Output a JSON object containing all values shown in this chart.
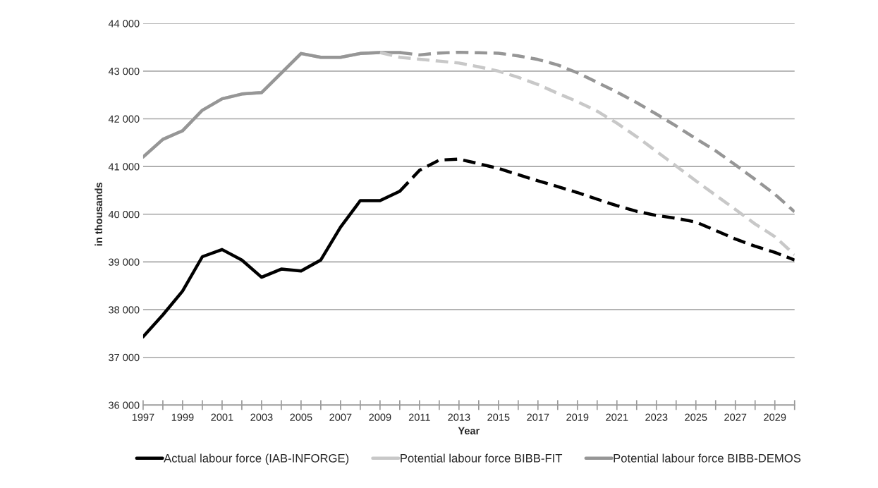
{
  "chart_data": {
    "type": "line",
    "xlabel": "Year",
    "ylabel": "in thousands",
    "xlim": [
      1997,
      2030
    ],
    "ylim": [
      36000,
      44000
    ],
    "xticks": [
      1997,
      {
        "value": 1998,
        "label": null
      },
      1999,
      {
        "value": 2000,
        "label": null
      },
      2001,
      {
        "value": 2002,
        "label": null
      },
      2003,
      {
        "value": 2004,
        "label": null
      },
      2005,
      {
        "value": 2006,
        "label": null
      },
      2007,
      {
        "value": 2008,
        "label": null
      },
      2009,
      {
        "value": 2010,
        "label": null
      },
      2011,
      {
        "value": 2012,
        "label": null
      },
      2013,
      {
        "value": 2014,
        "label": null
      },
      2015,
      {
        "value": 2016,
        "label": null
      },
      2017,
      {
        "value": 2018,
        "label": null
      },
      2019,
      {
        "value": 2020,
        "label": null
      },
      2021,
      {
        "value": 2022,
        "label": null
      },
      2023,
      {
        "value": 2024,
        "label": null
      },
      2025,
      {
        "value": 2026,
        "label": null
      },
      2027,
      {
        "value": 2028,
        "label": null
      },
      2029,
      {
        "value": 2030,
        "label": null
      }
    ],
    "yticks": [
      {
        "value": 36000,
        "label": "36 000"
      },
      {
        "value": 37000,
        "label": "37 000"
      },
      {
        "value": 38000,
        "label": "38 000"
      },
      {
        "value": 39000,
        "label": "39 000"
      },
      {
        "value": 40000,
        "label": "40 000"
      },
      {
        "value": 41000,
        "label": "41 000"
      },
      {
        "value": 42000,
        "label": "42 000"
      },
      {
        "value": 43000,
        "label": "43 000"
      },
      {
        "value": 44000,
        "label": "44 000"
      }
    ],
    "grid": "y",
    "legend": "bottom",
    "marker": "none",
    "series": [
      {
        "name": "Actual labour force (IAB-INFORGE)",
        "color": "#000000",
        "line_style": "solid",
        "x": [
          1997,
          1998,
          1999,
          2000,
          2001,
          2002,
          2003,
          2004,
          2005,
          2006,
          2007,
          2008,
          2009,
          2010
        ],
        "values": [
          37430,
          37890,
          38390,
          39110,
          39260,
          39040,
          38680,
          38850,
          38810,
          39040,
          39730,
          40285,
          40285,
          40480
        ]
      },
      {
        "name": "Potential labour force BIBB-FIT",
        "color": "#c8c8c8",
        "line_style": "solid",
        "x": [
          1997,
          1998,
          1999,
          2000,
          2001,
          2002,
          2003,
          2004,
          2005,
          2006,
          2007,
          2008,
          2009
        ],
        "values": [
          41200,
          41570,
          41750,
          42180,
          42420,
          42520,
          42550,
          42960,
          43370,
          43290,
          43290,
          43370,
          43390
        ]
      },
      {
        "name": "Potential labour force BIBB-DEMOS",
        "color": "#969696",
        "line_style": "solid",
        "x": [
          1997,
          1998,
          1999,
          2000,
          2001,
          2002,
          2003,
          2004,
          2005,
          2006,
          2007,
          2008,
          2009,
          2010
        ],
        "values": [
          41200,
          41570,
          41750,
          42180,
          42420,
          42520,
          42550,
          42960,
          43370,
          43290,
          43290,
          43370,
          43390,
          43390
        ]
      },
      {
        "color": "#c8c8c8",
        "line_style": "dashed",
        "x": [
          2009,
          2010,
          2011,
          2012,
          2013,
          2014,
          2015,
          2016,
          2017,
          2018,
          2019,
          2020,
          2021,
          2022,
          2023,
          2024,
          2025,
          2026,
          2027,
          2028,
          2029,
          2030
        ],
        "values": [
          43390,
          43290,
          43250,
          43210,
          43170,
          43090,
          43000,
          42870,
          42720,
          42535,
          42360,
          42160,
          41910,
          41625,
          41320,
          41010,
          40700,
          40400,
          40100,
          39795,
          39530,
          39150
        ]
      },
      {
        "color": "#969696",
        "line_style": "dashed",
        "x": [
          2010,
          2011,
          2012,
          2013,
          2014,
          2015,
          2016,
          2017,
          2018,
          2019,
          2020,
          2021,
          2022,
          2023,
          2024,
          2025,
          2026,
          2027,
          2028,
          2029,
          2030
        ],
        "values": [
          43390,
          43340,
          43380,
          43395,
          43385,
          43375,
          43320,
          43245,
          43130,
          42965,
          42765,
          42560,
          42340,
          42100,
          41850,
          41585,
          41330,
          41035,
          40730,
          40420,
          40050
        ]
      },
      {
        "color": "#000000",
        "line_style": "dashed",
        "x": [
          2010,
          2011,
          2012,
          2013,
          2014,
          2015,
          2016,
          2017,
          2018,
          2019,
          2020,
          2021,
          2022,
          2023,
          2024,
          2025,
          2026,
          2027,
          2028,
          2029,
          2030
        ],
        "values": [
          40480,
          40920,
          41135,
          41155,
          41060,
          40960,
          40830,
          40700,
          40580,
          40455,
          40315,
          40180,
          40060,
          39975,
          39915,
          39835,
          39660,
          39480,
          39330,
          39200,
          39040
        ]
      }
    ]
  }
}
